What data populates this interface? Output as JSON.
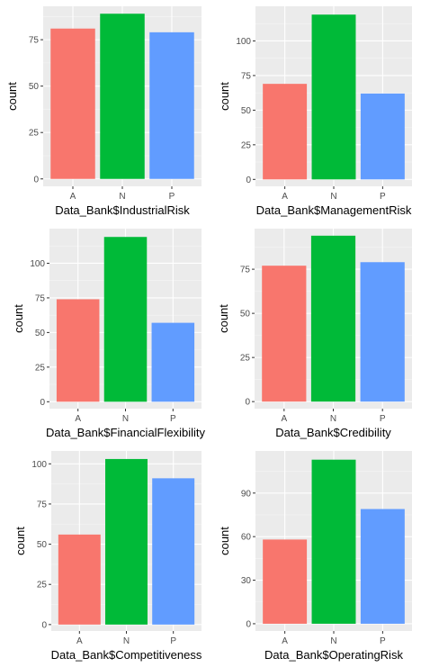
{
  "chart_data": [
    {
      "type": "bar",
      "categories": [
        "A",
        "N",
        "P"
      ],
      "values": [
        81,
        89,
        79
      ],
      "ylabel": "count",
      "xlabel": "Data_Bank$IndustrialRisk",
      "ylim": [
        -4,
        93
      ],
      "yticks": [
        0,
        25,
        50,
        75
      ]
    },
    {
      "type": "bar",
      "categories": [
        "A",
        "N",
        "P"
      ],
      "values": [
        69,
        119,
        62
      ],
      "ylabel": "count",
      "xlabel": "Data_Bank$ManagementRisk",
      "ylim": [
        -5,
        125
      ],
      "yticks": [
        0,
        25,
        50,
        75,
        100
      ]
    },
    {
      "type": "bar",
      "categories": [
        "A",
        "N",
        "P"
      ],
      "values": [
        74,
        119,
        57
      ],
      "ylabel": "count",
      "xlabel": "Data_Bank$FinancialFlexibility",
      "ylim": [
        -5,
        125
      ],
      "yticks": [
        0,
        25,
        50,
        75,
        100
      ]
    },
    {
      "type": "bar",
      "categories": [
        "A",
        "N",
        "P"
      ],
      "values": [
        77,
        94,
        79
      ],
      "ylabel": "count",
      "xlabel": "Data_Bank$Credibility",
      "ylim": [
        -4,
        98
      ],
      "yticks": [
        0,
        25,
        50,
        75
      ]
    },
    {
      "type": "bar",
      "categories": [
        "A",
        "N",
        "P"
      ],
      "values": [
        56,
        103,
        91
      ],
      "ylabel": "count",
      "xlabel": "Data_Bank$Competitiveness",
      "ylim": [
        -4,
        108
      ],
      "yticks": [
        0,
        25,
        50,
        75,
        100
      ]
    },
    {
      "type": "bar",
      "categories": [
        "A",
        "N",
        "P"
      ],
      "values": [
        58,
        113,
        79
      ],
      "ylabel": "count",
      "xlabel": "Data_Bank$OperatingRisk",
      "ylim": [
        -5,
        119
      ],
      "yticks": [
        0,
        30,
        60,
        90
      ]
    }
  ],
  "colors": {
    "A": "#f8766d",
    "N": "#00ba38",
    "P": "#619cff",
    "panel": "#ebebeb",
    "grid_major": "#ffffff",
    "grid_minor": "#f5f5f5"
  }
}
